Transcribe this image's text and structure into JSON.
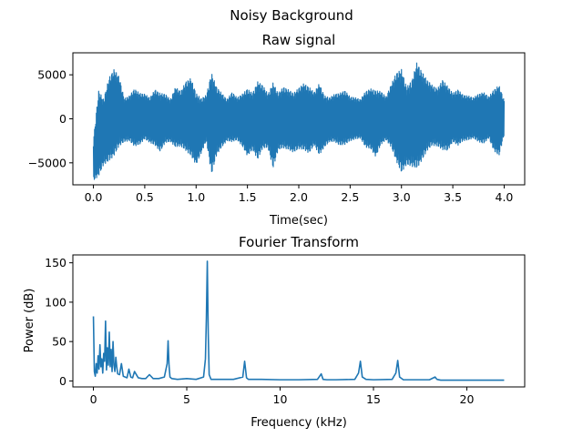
{
  "figure": {
    "suptitle": "Noisy Background"
  },
  "chart_data": [
    {
      "type": "line",
      "title": "Raw signal",
      "xlabel": "Time(sec)",
      "ylabel": "",
      "xlim": [
        -0.2,
        4.2
      ],
      "ylim": [
        -7500,
        7500
      ],
      "xticks": [
        0.0,
        0.5,
        1.0,
        1.5,
        2.0,
        2.5,
        3.0,
        3.5,
        4.0
      ],
      "xtick_labels": [
        "0.0",
        "0.5",
        "1.0",
        "1.5",
        "2.0",
        "2.5",
        "3.0",
        "3.5",
        "4.0"
      ],
      "yticks": [
        -5000,
        0,
        5000
      ],
      "ytick_labels": [
        "−5000",
        "0",
        "5000"
      ],
      "color": "#1f77b4",
      "grid": false,
      "envelope": {
        "x": [
          0.0,
          0.05,
          0.1,
          0.15,
          0.2,
          0.25,
          0.3,
          0.35,
          0.4,
          0.45,
          0.5,
          0.55,
          0.6,
          0.65,
          0.7,
          0.75,
          0.8,
          0.85,
          0.9,
          0.95,
          1.0,
          1.05,
          1.1,
          1.15,
          1.2,
          1.25,
          1.3,
          1.35,
          1.4,
          1.45,
          1.5,
          1.55,
          1.6,
          1.65,
          1.7,
          1.75,
          1.8,
          1.85,
          1.9,
          1.95,
          2.0,
          2.05,
          2.1,
          2.15,
          2.2,
          2.25,
          2.3,
          2.35,
          2.4,
          2.45,
          2.5,
          2.55,
          2.6,
          2.65,
          2.7,
          2.75,
          2.8,
          2.85,
          2.9,
          2.95,
          3.0,
          3.05,
          3.1,
          3.15,
          3.2,
          3.25,
          3.3,
          3.35,
          3.4,
          3.45,
          3.5,
          3.55,
          3.6,
          3.65,
          3.7,
          3.75,
          3.8,
          3.85,
          3.9,
          3.95,
          4.0
        ],
        "max": [
          -2500,
          3200,
          2200,
          4600,
          5600,
          4800,
          2300,
          2600,
          3400,
          2900,
          2800,
          2400,
          3300,
          2900,
          2800,
          2200,
          3600,
          3100,
          4200,
          4600,
          2900,
          2300,
          2700,
          5200,
          3600,
          2900,
          2200,
          3000,
          2400,
          2800,
          3400,
          2900,
          4200,
          3800,
          2800,
          4100,
          2900,
          3600,
          3300,
          2900,
          3500,
          4000,
          3600,
          3000,
          4000,
          2600,
          2400,
          2800,
          2900,
          3200,
          2500,
          2400,
          2200,
          3100,
          3400,
          3200,
          3100,
          2500,
          3900,
          5200,
          5600,
          3600,
          4300,
          6400,
          5300,
          4400,
          3800,
          3400,
          4400,
          3700,
          2900,
          3300,
          2700,
          2600,
          2400,
          2800,
          3000,
          2500,
          3300,
          3800,
          2100
        ],
        "min": [
          -7000,
          -6500,
          -5200,
          -4800,
          -4200,
          -3100,
          -2600,
          -2500,
          -3100,
          -2900,
          -2300,
          -2700,
          -3000,
          -3700,
          -2700,
          -2600,
          -3200,
          -3100,
          -3600,
          -4200,
          -5200,
          -3900,
          -2500,
          -6300,
          -4100,
          -3200,
          -2500,
          -2600,
          -2400,
          -3100,
          -4200,
          -3500,
          -4600,
          -3300,
          -3300,
          -5600,
          -3500,
          -3300,
          -3500,
          -3800,
          -3400,
          -3500,
          -3900,
          -3000,
          -4100,
          -3200,
          -2600,
          -2600,
          -3000,
          -2900,
          -2500,
          -2300,
          -2200,
          -3200,
          -3400,
          -4300,
          -2900,
          -2400,
          -3200,
          -4800,
          -6100,
          -5200,
          -5400,
          -5600,
          -4700,
          -3600,
          -3000,
          -3100,
          -3500,
          -3600,
          -2600,
          -3000,
          -2500,
          -2400,
          -2200,
          -2600,
          -2800,
          -2200,
          -3600,
          -4200,
          -1800
        ]
      }
    },
    {
      "type": "line",
      "title": "Fourier Transform",
      "xlabel": "Frequency (kHz)",
      "ylabel": "Power (dB)",
      "xlim": [
        -1.1,
        23.1
      ],
      "ylim": [
        -7.6,
        160
      ],
      "xticks": [
        0,
        5,
        10,
        15,
        20
      ],
      "xtick_labels": [
        "0",
        "5",
        "10",
        "15",
        "20"
      ],
      "yticks": [
        0,
        50,
        100,
        150
      ],
      "ytick_labels": [
        "0",
        "50",
        "100",
        "150"
      ],
      "color": "#1f77b4",
      "grid": false,
      "x": [
        0.0,
        0.05,
        0.1,
        0.15,
        0.2,
        0.25,
        0.3,
        0.35,
        0.4,
        0.45,
        0.5,
        0.55,
        0.6,
        0.65,
        0.7,
        0.75,
        0.8,
        0.85,
        0.9,
        0.95,
        1.0,
        1.05,
        1.1,
        1.15,
        1.2,
        1.25,
        1.3,
        1.4,
        1.5,
        1.6,
        1.7,
        1.8,
        1.9,
        2.0,
        2.1,
        2.2,
        2.4,
        2.6,
        2.8,
        3.0,
        3.2,
        3.5,
        3.8,
        3.95,
        4.0,
        4.05,
        4.1,
        4.2,
        4.5,
        5.0,
        5.5,
        5.9,
        6.0,
        6.05,
        6.1,
        6.15,
        6.2,
        6.3,
        6.5,
        7.0,
        7.5,
        8.0,
        8.1,
        8.2,
        8.3,
        8.6,
        9.0,
        10.0,
        11.0,
        12.0,
        12.2,
        12.3,
        12.5,
        13.0,
        14.0,
        14.2,
        14.3,
        14.4,
        14.6,
        15.0,
        16.0,
        16.2,
        16.3,
        16.4,
        16.6,
        17.0,
        18.0,
        18.3,
        18.4,
        18.6,
        19.0,
        20.0,
        21.0,
        22.0
      ],
      "y": [
        82,
        12,
        6,
        22,
        10,
        32,
        15,
        46,
        18,
        28,
        10,
        35,
        25,
        76,
        14,
        42,
        20,
        62,
        18,
        40,
        12,
        50,
        20,
        12,
        30,
        18,
        9,
        8,
        22,
        6,
        5,
        4,
        15,
        5,
        4,
        12,
        4,
        3,
        3,
        8,
        3,
        3,
        5,
        22,
        51,
        20,
        5,
        3,
        2,
        3,
        2,
        5,
        28,
        80,
        152,
        60,
        8,
        2,
        2,
        2,
        2,
        5,
        25,
        4,
        2,
        2,
        2,
        1.5,
        1.5,
        2,
        9,
        2,
        1.5,
        1.5,
        2,
        10,
        25,
        5,
        2,
        1.5,
        2,
        10,
        26,
        5,
        1.5,
        1.5,
        1.5,
        5,
        2,
        1,
        1,
        1,
        1,
        1
      ]
    }
  ]
}
